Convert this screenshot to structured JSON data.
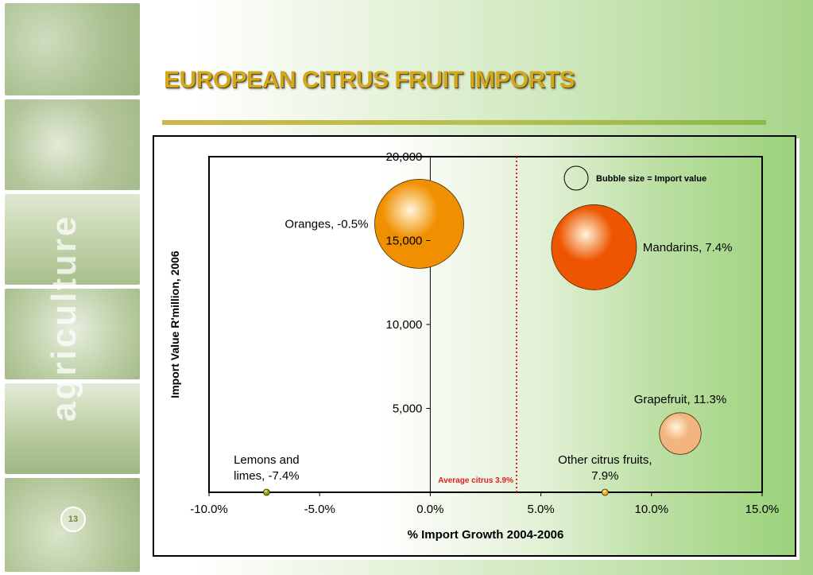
{
  "slide": {
    "title": "EUROPEAN CITRUS FRUIT IMPORTS",
    "side_text": "agriculture",
    "page_number": "13"
  },
  "chart_data": {
    "type": "bubble",
    "title": "",
    "xlabel": "% Import Growth 2004-2006",
    "ylabel": "Import Value R'million, 2006",
    "xlim": [
      -10,
      15
    ],
    "ylim": [
      0,
      20000
    ],
    "x_ticks": [
      -10,
      -5,
      0,
      5,
      10,
      15
    ],
    "x_tick_labels": [
      "-10.0%",
      "-5.0%",
      "0.0%",
      "5.0%",
      "10.0%",
      "15.0%"
    ],
    "y_ticks": [
      5000,
      10000,
      15000,
      20000
    ],
    "y_tick_labels": [
      "5,000",
      "10,000",
      "15,000",
      "20,000"
    ],
    "grid": false,
    "legend": {
      "text": "Bubble size = Import value",
      "placement": "top-right"
    },
    "reference_line": {
      "x": 3.9,
      "label": "Average citrus 3.9%",
      "color": "#e02020",
      "style": "dotted"
    },
    "points": [
      {
        "name": "Oranges, -0.5%",
        "label_lines": [
          "Oranges, -0.5%"
        ],
        "x": -0.5,
        "y": 16000,
        "color": "#f09000",
        "label_side": "left"
      },
      {
        "name": "Mandarins, 7.4%",
        "label_lines": [
          "Mandarins, 7.4%"
        ],
        "x": 7.4,
        "y": 14600,
        "color": "#ee5500",
        "label_side": "right"
      },
      {
        "name": "Grapefruit, 11.3%",
        "label_lines": [
          "Grapefruit, 11.3%"
        ],
        "x": 11.3,
        "y": 3500,
        "color": "#f2b57f",
        "label_side": "above"
      },
      {
        "name": "Other citrus fruits, 7.9%",
        "label_lines": [
          "Other citrus fruits,",
          "7.9%"
        ],
        "x": 7.9,
        "y": 0,
        "color": "#e8b020",
        "label_side": "above"
      },
      {
        "name": "Lemons and limes, -7.4%",
        "label_lines": [
          "Lemons   and",
          "limes, -7.4%"
        ],
        "x": -7.4,
        "y": 0,
        "color": "#8aa000",
        "label_side": "above"
      }
    ]
  }
}
